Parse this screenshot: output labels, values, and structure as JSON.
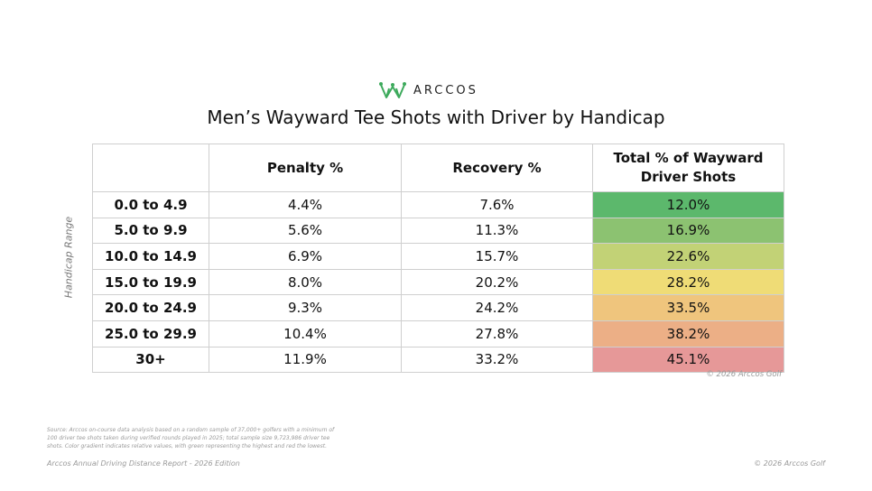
{
  "brand": {
    "name": "ARCCOS",
    "logo_color": "#3daa5c"
  },
  "title": "Men’s Wayward Tee Shots with Driver by Handicap",
  "y_axis_label": "Handicap Range",
  "table": {
    "columns": [
      "",
      "Penalty %",
      "Recovery %",
      "Total % of Wayward Driver Shots"
    ],
    "rows": [
      {
        "range": "0.0 to 4.9",
        "penalty": "4.4%",
        "recovery": "7.6%",
        "total": "12.0%",
        "total_color": "#5cb86c"
      },
      {
        "range": "5.0 to 9.9",
        "penalty": "5.6%",
        "recovery": "11.3%",
        "total": "16.9%",
        "total_color": "#8cc271"
      },
      {
        "range": "10.0 to 14.9",
        "penalty": "6.9%",
        "recovery": "15.7%",
        "total": "22.6%",
        "total_color": "#c2d276"
      },
      {
        "range": "15.0 to 19.9",
        "penalty": "8.0%",
        "recovery": "20.2%",
        "total": "28.2%",
        "total_color": "#efdc76"
      },
      {
        "range": "20.0 to 24.9",
        "penalty": "9.3%",
        "recovery": "24.2%",
        "total": "33.5%",
        "total_color": "#efc57d"
      },
      {
        "range": "25.0 to 29.9",
        "penalty": "10.4%",
        "recovery": "27.8%",
        "total": "38.2%",
        "total_color": "#ecaf86"
      },
      {
        "range": "30+",
        "penalty": "11.9%",
        "recovery": "33.2%",
        "total": "45.1%",
        "total_color": "#e69898"
      }
    ]
  },
  "chart_data": {
    "type": "table",
    "title": "Men’s Wayward Tee Shots with Driver by Handicap",
    "ylabel": "Handicap Range",
    "categories": [
      "0.0 to 4.9",
      "5.0 to 9.9",
      "10.0 to 14.9",
      "15.0 to 19.9",
      "20.0 to 24.9",
      "25.0 to 29.9",
      "30+"
    ],
    "series": [
      {
        "name": "Penalty %",
        "values": [
          4.4,
          5.6,
          6.9,
          8.0,
          9.3,
          10.4,
          11.9
        ]
      },
      {
        "name": "Recovery %",
        "values": [
          7.6,
          11.3,
          15.7,
          20.2,
          24.2,
          27.8,
          33.2
        ]
      },
      {
        "name": "Total % of Wayward Driver Shots",
        "values": [
          12.0,
          16.9,
          22.6,
          28.2,
          33.5,
          38.2,
          45.1
        ]
      }
    ]
  },
  "copyright_under_table": "© 2026 Arccos Golf",
  "source_note": "Source: Arccos on-course data analysis based on a random sample of 37,000+ golfers with a minimum of 100 driver tee shots taken during verified rounds played in 2025; total sample size 9,723,986 driver tee shots. Color gradient indicates relative values, with green representing the highest and red the lowest.",
  "footer_left": "Arccos Annual Driving Distance Report - 2026 Edition",
  "footer_right": "© 2026 Arccos Golf"
}
